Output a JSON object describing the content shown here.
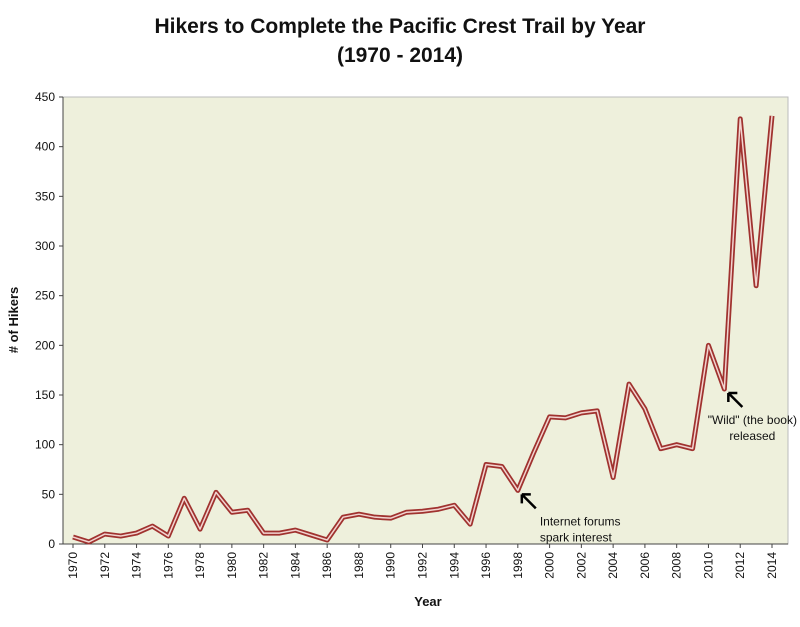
{
  "chart_data": {
    "type": "line",
    "title": "Hikers to Complete the Pacific Crest Trail by Year",
    "subtitle": "(1970 - 2014)",
    "x_label": "Year",
    "y_label": "# of Hikers",
    "x": [
      1970,
      1971,
      1972,
      1973,
      1974,
      1975,
      1976,
      1977,
      1978,
      1979,
      1980,
      1981,
      1982,
      1983,
      1984,
      1985,
      1986,
      1987,
      1988,
      1989,
      1990,
      1991,
      1992,
      1993,
      1994,
      1995,
      1996,
      1997,
      1998,
      1999,
      2000,
      2001,
      2002,
      2003,
      2004,
      2005,
      2006,
      2007,
      2008,
      2009,
      2010,
      2011,
      2012,
      2013,
      2014
    ],
    "series": [
      {
        "name": "Hikers",
        "color": "#a0322f",
        "values": [
          7,
          2,
          10,
          8,
          11,
          18,
          8,
          46,
          15,
          52,
          32,
          34,
          11,
          11,
          14,
          9,
          4,
          27,
          30,
          27,
          26,
          32,
          33,
          35,
          39,
          20,
          80,
          78,
          54,
          92,
          128,
          127,
          132,
          134,
          67,
          161,
          136,
          96,
          100,
          96,
          200,
          156,
          428,
          260,
          431
        ]
      }
    ],
    "xlim": [
      1970,
      2014
    ],
    "xticks": [
      1970,
      1972,
      1974,
      1976,
      1978,
      1980,
      1982,
      1984,
      1986,
      1988,
      1990,
      1992,
      1994,
      1996,
      1998,
      2000,
      2002,
      2004,
      2006,
      2008,
      2010,
      2012,
      2014
    ],
    "ylim": [
      0,
      450
    ],
    "yticks": [
      0,
      50,
      100,
      150,
      200,
      250,
      300,
      350,
      400,
      450
    ],
    "annotations": [
      {
        "x": 1998,
        "y": 54,
        "lines": [
          "Internet forums",
          "spark interest"
        ]
      },
      {
        "x": 2011,
        "y": 156,
        "lines": [
          "\"Wild\" (the book)",
          "released"
        ]
      }
    ]
  }
}
